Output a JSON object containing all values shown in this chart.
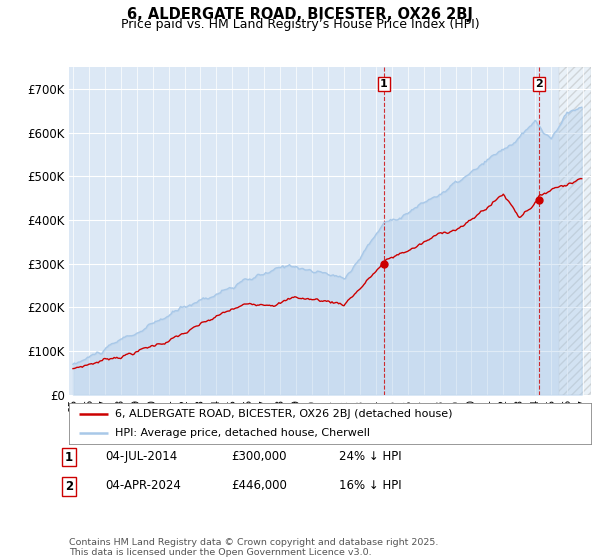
{
  "title1": "6, ALDERGATE ROAD, BICESTER, OX26 2BJ",
  "title2": "Price paid vs. HM Land Registry’s House Price Index (HPI)",
  "ylim": [
    0,
    750000
  ],
  "yticks": [
    0,
    100000,
    200000,
    300000,
    400000,
    500000,
    600000,
    700000
  ],
  "ytick_labels": [
    "£0",
    "£100K",
    "£200K",
    "£300K",
    "£400K",
    "£500K",
    "£600K",
    "£700K"
  ],
  "hpi_color": "#a8c8e8",
  "price_color": "#cc0000",
  "marker1_date": 2014.5,
  "marker1_price": 300000,
  "marker2_date": 2024.25,
  "marker2_price": 446000,
  "legend_price_label": "6, ALDERGATE ROAD, BICESTER, OX26 2BJ (detached house)",
  "legend_hpi_label": "HPI: Average price, detached house, Cherwell",
  "note1_label": "1",
  "note1_date": "04-JUL-2014",
  "note1_price": "£300,000",
  "note1_hpi": "24% ↓ HPI",
  "note2_label": "2",
  "note2_date": "04-APR-2024",
  "note2_price": "£446,000",
  "note2_hpi": "16% ↓ HPI",
  "footer": "Contains HM Land Registry data © Crown copyright and database right 2025.\nThis data is licensed under the Open Government Licence v3.0.",
  "plot_bg_color": "#dce8f5",
  "vline1_x": 2014.5,
  "vline2_x": 2024.25,
  "xmin": 1994.75,
  "xmax": 2027.5,
  "hatch_start": 2025.5
}
